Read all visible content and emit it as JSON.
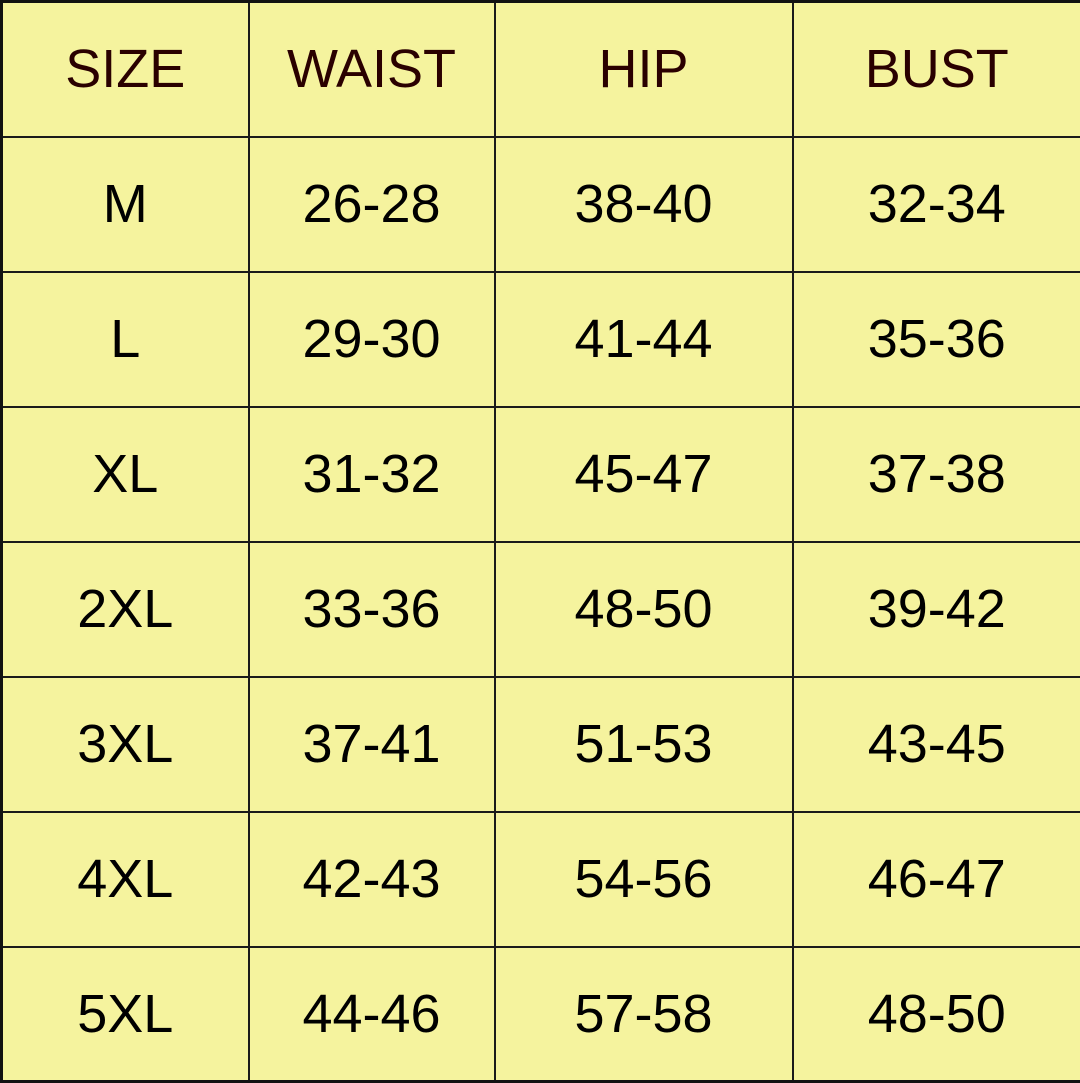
{
  "colors": {
    "background": "#f5f39e",
    "header_text": "#2a0000",
    "text": "#000000",
    "border": "#1a1a1a"
  },
  "table": {
    "headers": [
      "SIZE",
      "WAIST",
      "HIP",
      "BUST"
    ],
    "rows": [
      [
        "M",
        "26-28",
        "38-40",
        "32-34"
      ],
      [
        "L",
        "29-30",
        "41-44",
        "35-36"
      ],
      [
        "XL",
        "31-32",
        "45-47",
        "37-38"
      ],
      [
        "2XL",
        "33-36",
        "48-50",
        "39-42"
      ],
      [
        "3XL",
        "37-41",
        "51-53",
        "43-45"
      ],
      [
        "4XL",
        "42-43",
        "54-56",
        "46-47"
      ],
      [
        "5XL",
        "44-46",
        "57-58",
        "48-50"
      ]
    ]
  }
}
